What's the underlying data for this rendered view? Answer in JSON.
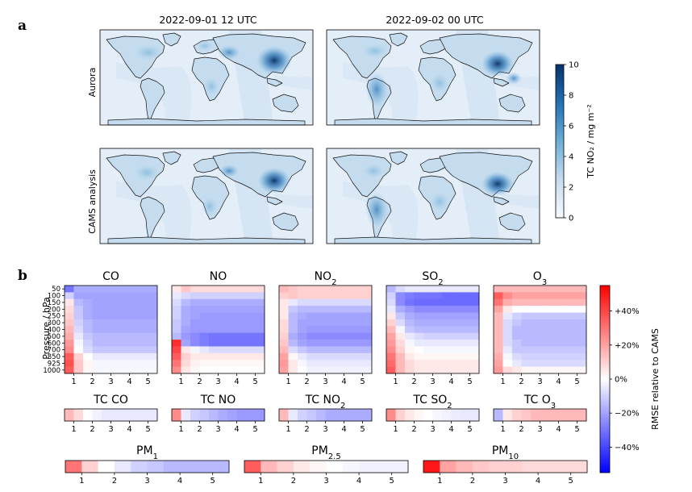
{
  "panel_a": {
    "letter": "a",
    "columns": [
      "2022-09-01 12 UTC",
      "2022-09-02 00 UTC"
    ],
    "rows": [
      "Aurora",
      "CAMS analysis"
    ],
    "colorbar": {
      "label": "TC NO₂ / mg m⁻²",
      "ticks": [
        "0",
        "2",
        "4",
        "6",
        "8",
        "10"
      ]
    }
  },
  "panel_b": {
    "letter": "b",
    "ylabel": "Pressure / hPa",
    "pressure_ticks": [
      "50",
      "100",
      "150",
      "200",
      "250",
      "300",
      "400",
      "500",
      "600",
      "700",
      "850",
      "925",
      "1000"
    ],
    "lead_ticks": [
      "1",
      "2",
      "3",
      "4",
      "5"
    ],
    "colorbar": {
      "label": "RMSE relative to CAMS",
      "ticks": [
        "+40%",
        "+20%",
        "0%",
        "−20%",
        "−40%"
      ]
    }
  },
  "chart_data": [
    {
      "type": "heatmap",
      "title": "CO",
      "ylabel": "Pressure / hPa",
      "x": "lead time 0.5–5 days",
      "y": [
        50,
        100,
        150,
        200,
        250,
        300,
        400,
        500,
        600,
        700,
        850,
        925,
        1000
      ],
      "values_percent": [
        [
          -30,
          -18,
          -18,
          -18,
          -18,
          -18,
          -18,
          -18,
          -18,
          -18
        ],
        [
          -10,
          -20,
          -20,
          -20,
          -20,
          -20,
          -20,
          -20,
          -20,
          -20
        ],
        [
          5,
          -15,
          -18,
          -20,
          -20,
          -20,
          -20,
          -20,
          -20,
          -20
        ],
        [
          8,
          -12,
          -18,
          -20,
          -20,
          -20,
          -20,
          -20,
          -20,
          -20
        ],
        [
          10,
          -12,
          -18,
          -20,
          -20,
          -20,
          -20,
          -20,
          -20,
          -20
        ],
        [
          12,
          -10,
          -15,
          -18,
          -18,
          -18,
          -18,
          -18,
          -18,
          -18
        ],
        [
          15,
          -8,
          -15,
          -18,
          -18,
          -18,
          -18,
          -18,
          -18,
          -18
        ],
        [
          18,
          -5,
          -12,
          -15,
          -15,
          -15,
          -15,
          -15,
          -15,
          -15
        ],
        [
          22,
          -2,
          -10,
          -15,
          -15,
          -15,
          -15,
          -15,
          -15,
          -15
        ],
        [
          25,
          0,
          -8,
          -12,
          -12,
          -12,
          -12,
          -12,
          -12,
          -12
        ],
        [
          35,
          10,
          0,
          -5,
          -5,
          -5,
          -5,
          -5,
          -5,
          -5
        ],
        [
          38,
          12,
          2,
          -2,
          -2,
          -2,
          -2,
          -2,
          -2,
          -2
        ],
        [
          35,
          12,
          2,
          -2,
          -2,
          -2,
          -2,
          -2,
          -2,
          -2
        ]
      ]
    },
    {
      "type": "heatmap",
      "title": "NO",
      "x": "lead time 0.5–5 days",
      "y": [
        50,
        100,
        150,
        200,
        250,
        300,
        400,
        500,
        600,
        700,
        850,
        925,
        1000
      ],
      "values_percent": [
        [
          5,
          12,
          8,
          8,
          8,
          8,
          8,
          8,
          8,
          8
        ],
        [
          -5,
          -8,
          -10,
          -10,
          -10,
          -10,
          -10,
          -10,
          -10,
          -10
        ],
        [
          -8,
          -15,
          -18,
          -18,
          -18,
          -18,
          -18,
          -18,
          -18,
          -18
        ],
        [
          -10,
          -18,
          -20,
          -20,
          -20,
          -20,
          -20,
          -20,
          -20,
          -20
        ],
        [
          -10,
          -18,
          -20,
          -22,
          -22,
          -22,
          -22,
          -22,
          -22,
          -22
        ],
        [
          -12,
          -18,
          -22,
          -22,
          -22,
          -22,
          -22,
          -22,
          -22,
          -22
        ],
        [
          -12,
          -20,
          -22,
          -22,
          -22,
          -22,
          -22,
          -22,
          -22,
          -22
        ],
        [
          -15,
          -22,
          -25,
          -28,
          -30,
          -30,
          -30,
          -30,
          -30,
          -30
        ],
        [
          45,
          -20,
          -25,
          -28,
          -30,
          -30,
          -30,
          -30,
          -30,
          -30
        ],
        [
          40,
          5,
          -2,
          -5,
          -8,
          -8,
          -8,
          -8,
          -8,
          -8
        ],
        [
          35,
          10,
          5,
          5,
          5,
          5,
          5,
          5,
          5,
          5
        ],
        [
          30,
          8,
          3,
          2,
          2,
          2,
          2,
          2,
          2,
          2
        ],
        [
          25,
          5,
          2,
          0,
          0,
          0,
          0,
          0,
          0,
          0
        ]
      ]
    },
    {
      "type": "heatmap",
      "title": "NO₂",
      "x": "lead time 0.5–5 days",
      "y": [
        50,
        100,
        150,
        200,
        250,
        300,
        400,
        500,
        600,
        700,
        850,
        925,
        1000
      ],
      "values_percent": [
        [
          15,
          12,
          10,
          10,
          10,
          10,
          10,
          10,
          10,
          10
        ],
        [
          10,
          12,
          10,
          10,
          10,
          10,
          10,
          10,
          10,
          10
        ],
        [
          5,
          -5,
          -8,
          -8,
          -8,
          -8,
          -8,
          -8,
          -8,
          -8
        ],
        [
          5,
          -12,
          -15,
          -15,
          -15,
          -15,
          -15,
          -15,
          -15,
          -15
        ],
        [
          5,
          -15,
          -18,
          -20,
          -20,
          -20,
          -20,
          -20,
          -20,
          -20
        ],
        [
          8,
          -15,
          -20,
          -20,
          -20,
          -20,
          -20,
          -20,
          -20,
          -20
        ],
        [
          8,
          -15,
          -20,
          -22,
          -22,
          -22,
          -22,
          -22,
          -22,
          -22
        ],
        [
          10,
          -18,
          -22,
          -25,
          -25,
          -25,
          -25,
          -25,
          -25,
          -25
        ],
        [
          12,
          -15,
          -20,
          -22,
          -22,
          -22,
          -22,
          -22,
          -22,
          -22
        ],
        [
          15,
          -8,
          -12,
          -15,
          -15,
          -15,
          -15,
          -15,
          -15,
          -15
        ],
        [
          20,
          2,
          -5,
          -8,
          -8,
          -8,
          -8,
          -8,
          -8,
          -8
        ],
        [
          22,
          5,
          -2,
          -5,
          -5,
          -5,
          -5,
          -5,
          -5,
          -5
        ],
        [
          20,
          5,
          0,
          -3,
          -3,
          -3,
          -3,
          -3,
          -3,
          -3
        ]
      ]
    },
    {
      "type": "heatmap",
      "title": "SO₂",
      "x": "lead time 0.5–5 days",
      "y": [
        50,
        100,
        150,
        200,
        250,
        300,
        400,
        500,
        600,
        700,
        850,
        925,
        1000
      ],
      "values_percent": [
        [
          -15,
          -8,
          -5,
          -5,
          -5,
          -5,
          -5,
          -5,
          -5,
          -5
        ],
        [
          -10,
          -25,
          -28,
          -30,
          -30,
          -30,
          -32,
          -32,
          -32,
          -32
        ],
        [
          -8,
          -25,
          -30,
          -32,
          -32,
          -32,
          -32,
          -32,
          -32,
          -32
        ],
        [
          -5,
          -18,
          -22,
          -25,
          -25,
          -25,
          -25,
          -25,
          -25,
          -25
        ],
        [
          5,
          -12,
          -18,
          -20,
          -20,
          -20,
          -20,
          -20,
          -20,
          -20
        ],
        [
          10,
          -8,
          -15,
          -18,
          -18,
          -18,
          -18,
          -18,
          -18,
          -18
        ],
        [
          15,
          -2,
          -12,
          -15,
          -15,
          -15,
          -15,
          -15,
          -15,
          -15
        ],
        [
          20,
          5,
          -5,
          -8,
          -10,
          -10,
          -10,
          -10,
          -10,
          -10
        ],
        [
          22,
          8,
          -2,
          -5,
          -5,
          -5,
          -5,
          -5,
          -5,
          -5
        ],
        [
          25,
          10,
          2,
          0,
          -2,
          -2,
          -2,
          -2,
          -2,
          -2
        ],
        [
          30,
          15,
          5,
          2,
          2,
          2,
          2,
          2,
          2,
          2
        ],
        [
          32,
          15,
          8,
          5,
          5,
          5,
          5,
          5,
          5,
          5
        ],
        [
          35,
          15,
          8,
          5,
          5,
          5,
          5,
          5,
          5,
          5
        ]
      ]
    },
    {
      "type": "heatmap",
      "title": "O₃",
      "x": "lead time 0.5–5 days",
      "y": [
        50,
        100,
        150,
        200,
        250,
        300,
        400,
        500,
        600,
        700,
        850,
        925,
        1000
      ],
      "values_percent": [
        [
          15,
          15,
          15,
          15,
          15,
          15,
          15,
          15,
          15,
          15
        ],
        [
          35,
          25,
          20,
          20,
          20,
          20,
          20,
          20,
          20,
          20
        ],
        [
          30,
          18,
          15,
          15,
          15,
          15,
          15,
          15,
          15,
          15
        ],
        [
          20,
          5,
          0,
          0,
          0,
          0,
          0,
          0,
          0,
          0
        ],
        [
          15,
          -5,
          -10,
          -12,
          -12,
          -12,
          -12,
          -12,
          -12,
          -12
        ],
        [
          15,
          -8,
          -12,
          -15,
          -15,
          -15,
          -15,
          -15,
          -15,
          -15
        ],
        [
          15,
          -8,
          -15,
          -15,
          -15,
          -15,
          -15,
          -15,
          -15,
          -15
        ],
        [
          15,
          -8,
          -15,
          -15,
          -15,
          -15,
          -15,
          -15,
          -15,
          -15
        ],
        [
          15,
          -8,
          -12,
          -15,
          -15,
          -15,
          -15,
          -15,
          -15,
          -15
        ],
        [
          15,
          -5,
          -12,
          -12,
          -12,
          -12,
          -12,
          -12,
          -12,
          -12
        ],
        [
          18,
          -2,
          -8,
          -10,
          -10,
          -10,
          -10,
          -10,
          -10,
          -10
        ],
        [
          20,
          0,
          -5,
          -8,
          -8,
          -8,
          -8,
          -8,
          -8,
          -8
        ],
        [
          22,
          8,
          5,
          2,
          2,
          2,
          2,
          2,
          2,
          2
        ]
      ]
    },
    {
      "type": "heatmap",
      "title": "TC CO",
      "x": "lead time 0.5–5 days",
      "values_percent": [
        [
          15,
          8,
          0,
          -3,
          -5,
          -5,
          -5,
          -5,
          -5,
          -5
        ]
      ]
    },
    {
      "type": "heatmap",
      "title": "TC NO",
      "x": "lead time 0.5–5 days",
      "values_percent": [
        [
          25,
          -5,
          -10,
          -12,
          -15,
          -18,
          -20,
          -22,
          -22,
          -22
        ]
      ]
    },
    {
      "type": "heatmap",
      "title": "TC NO₂",
      "x": "lead time 0.5–5 days",
      "values_percent": [
        [
          15,
          -5,
          -10,
          -12,
          -15,
          -18,
          -18,
          -18,
          -18,
          -18
        ]
      ]
    },
    {
      "type": "heatmap",
      "title": "TC SO₂",
      "x": "lead time 0.5–5 days",
      "values_percent": [
        [
          25,
          10,
          5,
          2,
          0,
          -2,
          -3,
          -4,
          -5,
          -5
        ]
      ]
    },
    {
      "type": "heatmap",
      "title": "TC O₃",
      "x": "lead time 0.5–5 days",
      "values_percent": [
        [
          -15,
          5,
          10,
          12,
          15,
          15,
          15,
          15,
          15,
          15
        ]
      ]
    },
    {
      "type": "heatmap",
      "title": "PM₁",
      "x": "lead time 0.5–5 days",
      "values_percent": [
        [
          30,
          10,
          0,
          -5,
          -10,
          -12,
          -15,
          -15,
          -15,
          -15
        ]
      ]
    },
    {
      "type": "heatmap",
      "title": "PM₂.₅",
      "x": "lead time 0.5–5 days",
      "values_percent": [
        [
          35,
          15,
          10,
          5,
          2,
          0,
          -2,
          -3,
          -3,
          -3
        ]
      ]
    },
    {
      "type": "heatmap",
      "title": "PM₁₀",
      "x": "lead time 0.5–5 days",
      "values_percent": [
        [
          50,
          20,
          15,
          12,
          10,
          10,
          8,
          8,
          8,
          8
        ]
      ]
    }
  ]
}
